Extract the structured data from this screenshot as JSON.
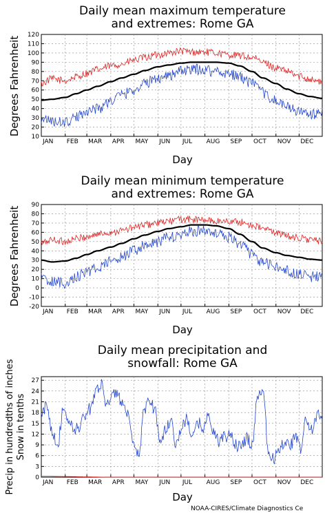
{
  "credit": "NOAA-CIRES/Climate Diagnostics Ce",
  "colors": {
    "max_series": "#dd2222",
    "mean_series": "#000000",
    "min_series": "#2244cc",
    "precip_series": "#2244cc",
    "snow_series": "#dd2222",
    "grid": "#888888"
  },
  "chart_data": [
    {
      "type": "line",
      "title_line1": "Daily mean maximum temperature",
      "title_line2": "and extremes: Rome GA",
      "xlabel": "Day",
      "ylabel": "Degrees Fahrenheit",
      "months": [
        "JAN",
        "FEB",
        "MAR",
        "APR",
        "MAY",
        "JUN",
        "JUL",
        "AUG",
        "SEP",
        "OCT",
        "NOV",
        "DEC"
      ],
      "ylim": [
        10,
        120
      ],
      "yticks": [
        10,
        20,
        30,
        40,
        50,
        60,
        70,
        80,
        90,
        100,
        110,
        120
      ],
      "grid": true,
      "series": [
        {
          "name": "",
          "role": "extreme_max",
          "color": "#dd2222",
          "x": [
            1,
            15,
            32,
            46,
            60,
            74,
            91,
            105,
            121,
            135,
            152,
            166,
            182,
            196,
            213,
            227,
            244,
            258,
            274,
            288,
            305,
            319,
            335,
            349,
            365
          ],
          "values": [
            67,
            72,
            70,
            74,
            78,
            82,
            86,
            88,
            92,
            95,
            98,
            100,
            102,
            101,
            101,
            100,
            98,
            97,
            95,
            90,
            84,
            80,
            75,
            72,
            68
          ]
        },
        {
          "name": "",
          "role": "mean",
          "color": "#000000",
          "x": [
            1,
            15,
            32,
            46,
            60,
            74,
            91,
            105,
            121,
            135,
            152,
            166,
            182,
            196,
            213,
            227,
            244,
            258,
            274,
            288,
            305,
            319,
            335,
            349,
            365
          ],
          "values": [
            49,
            50,
            52,
            56,
            60,
            64,
            69,
            73,
            77,
            81,
            85,
            87,
            89,
            90,
            90,
            90,
            89,
            86,
            80,
            73,
            67,
            61,
            56,
            53,
            51
          ]
        },
        {
          "name": "",
          "role": "extreme_min",
          "color": "#2244cc",
          "x": [
            1,
            15,
            32,
            46,
            60,
            74,
            91,
            105,
            121,
            135,
            152,
            166,
            182,
            196,
            213,
            227,
            244,
            258,
            274,
            288,
            305,
            319,
            335,
            349,
            365
          ],
          "values": [
            30,
            26,
            25,
            30,
            38,
            40,
            48,
            55,
            60,
            67,
            73,
            76,
            80,
            82,
            82,
            80,
            78,
            74,
            67,
            57,
            48,
            42,
            37,
            33,
            36
          ]
        }
      ]
    },
    {
      "type": "line",
      "title_line1": "Daily mean minimum temperature",
      "title_line2": "and extremes: Rome GA",
      "xlabel": "Day",
      "ylabel": "Degrees Fahrenheit",
      "months": [
        "JAN",
        "FEB",
        "MAR",
        "APR",
        "MAY",
        "JUN",
        "JUL",
        "AUG",
        "SEP",
        "OCT",
        "NOV",
        "DEC"
      ],
      "ylim": [
        -20,
        90
      ],
      "yticks": [
        -20,
        -10,
        0,
        10,
        20,
        30,
        40,
        50,
        60,
        70,
        80,
        90
      ],
      "grid": true,
      "series": [
        {
          "name": "",
          "role": "extreme_max",
          "color": "#dd2222",
          "x": [
            1,
            15,
            32,
            46,
            60,
            74,
            91,
            105,
            121,
            135,
            152,
            166,
            182,
            196,
            213,
            227,
            244,
            258,
            274,
            288,
            305,
            319,
            335,
            349,
            365
          ],
          "values": [
            48,
            52,
            50,
            53,
            55,
            58,
            60,
            62,
            65,
            68,
            70,
            72,
            74,
            74,
            73,
            72,
            72,
            71,
            68,
            64,
            60,
            56,
            54,
            52,
            50
          ]
        },
        {
          "name": "",
          "role": "mean",
          "color": "#000000",
          "x": [
            1,
            15,
            32,
            46,
            60,
            74,
            91,
            105,
            121,
            135,
            152,
            166,
            182,
            196,
            213,
            227,
            244,
            258,
            274,
            288,
            305,
            319,
            335,
            349,
            365
          ],
          "values": [
            30,
            28,
            29,
            32,
            36,
            40,
            44,
            48,
            53,
            57,
            61,
            64,
            66,
            68,
            68,
            67,
            64,
            58,
            50,
            43,
            38,
            35,
            33,
            31,
            30
          ]
        },
        {
          "name": "",
          "role": "extreme_min",
          "color": "#2244cc",
          "x": [
            1,
            15,
            32,
            46,
            60,
            74,
            91,
            105,
            121,
            135,
            152,
            166,
            182,
            196,
            213,
            227,
            244,
            258,
            274,
            288,
            305,
            319,
            335,
            349,
            365
          ],
          "values": [
            10,
            7,
            5,
            12,
            18,
            22,
            28,
            33,
            40,
            45,
            50,
            54,
            58,
            61,
            62,
            60,
            55,
            48,
            36,
            28,
            22,
            18,
            14,
            12,
            12
          ]
        }
      ]
    },
    {
      "type": "line",
      "title_line1": "Daily mean precipitation and",
      "title_line2": "snowfall: Rome GA",
      "xlabel": "Day",
      "ylabel_line1": "Precip in hundredths of inches",
      "ylabel_line2": "Snow in tenths",
      "months": [
        "JAN",
        "FEB",
        "MAR",
        "APR",
        "MAY",
        "JUN",
        "JUL",
        "AUG",
        "SEP",
        "OCT",
        "NOV",
        "DEC"
      ],
      "ylim": [
        0,
        28
      ],
      "yticks": [
        0,
        3,
        6,
        9,
        12,
        15,
        18,
        21,
        24,
        27
      ],
      "grid": true,
      "series": [
        {
          "name": "",
          "role": "precip",
          "color": "#2244cc",
          "x": [
            1,
            8,
            15,
            22,
            29,
            36,
            43,
            50,
            57,
            64,
            71,
            78,
            85,
            92,
            99,
            106,
            113,
            120,
            127,
            134,
            141,
            148,
            155,
            162,
            169,
            176,
            183,
            190,
            197,
            204,
            211,
            218,
            225,
            232,
            239,
            246,
            253,
            260,
            267,
            274,
            281,
            288,
            295,
            302,
            309,
            316,
            323,
            330,
            337,
            344,
            351,
            358,
            365
          ],
          "values": [
            17,
            20,
            13,
            9,
            18,
            16,
            13,
            14,
            17,
            19,
            24,
            26,
            21,
            22,
            24,
            20,
            17,
            9,
            6,
            18,
            22,
            19,
            10,
            13,
            16,
            9,
            14,
            16,
            11,
            15,
            14,
            17,
            12,
            10,
            11,
            12,
            9,
            8,
            11,
            9,
            22,
            25,
            8,
            5,
            8,
            10,
            9,
            11,
            8,
            16,
            13,
            17,
            18
          ]
        },
        {
          "name": "",
          "role": "snow",
          "color": "#dd2222",
          "x": [
            1,
            31,
            59,
            90,
            365
          ],
          "values": [
            0.3,
            0.2,
            0.1,
            0,
            0
          ]
        }
      ]
    }
  ]
}
